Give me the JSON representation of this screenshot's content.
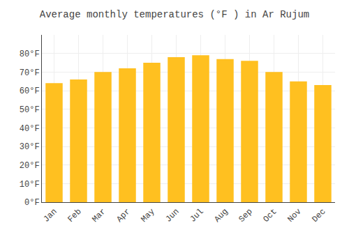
{
  "chart_data": {
    "type": "bar",
    "title": "Average monthly temperatures (°F ) in Ar Rujum",
    "categories": [
      "Jan",
      "Feb",
      "Mar",
      "Apr",
      "May",
      "Jun",
      "Jul",
      "Aug",
      "Sep",
      "Oct",
      "Nov",
      "Dec"
    ],
    "values": [
      64,
      66,
      70,
      72,
      75,
      78,
      79,
      77,
      76,
      70,
      65,
      63
    ],
    "color": "#FFC020",
    "ylim": [
      0,
      90
    ],
    "yticks": [
      {
        "value": 0,
        "label": "0°F"
      },
      {
        "value": 10,
        "label": "10°F"
      },
      {
        "value": 20,
        "label": "20°F"
      },
      {
        "value": 30,
        "label": "30°F"
      },
      {
        "value": 40,
        "label": "40°F"
      },
      {
        "value": 50,
        "label": "50°F"
      },
      {
        "value": 60,
        "label": "60°F"
      },
      {
        "value": 70,
        "label": "70°F"
      },
      {
        "value": 80,
        "label": "80°F"
      }
    ],
    "grid": true
  }
}
